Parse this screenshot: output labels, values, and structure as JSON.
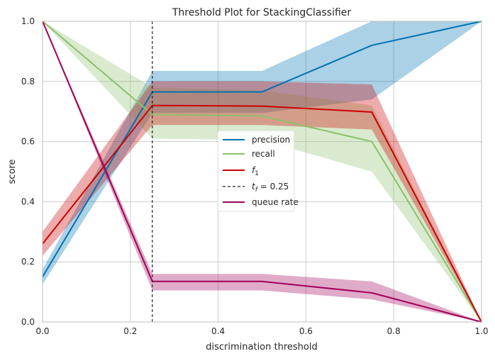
{
  "chart_data": {
    "type": "line",
    "title": "Threshold Plot for StackingClassifier",
    "xlabel": "discrimination threshold",
    "ylabel": "score",
    "xlim": [
      0,
      1
    ],
    "ylim": [
      0,
      1
    ],
    "xticks": [
      "0.0",
      "0.2",
      "0.4",
      "0.6",
      "0.8",
      "1.0"
    ],
    "yticks": [
      "0.0",
      "0.2",
      "0.4",
      "0.6",
      "0.8",
      "1.0"
    ],
    "grid": true,
    "legend_position": "center",
    "x": [
      0.0,
      0.25,
      0.5,
      0.75,
      1.0
    ],
    "series": [
      {
        "name": "precision",
        "color": "#0072b2",
        "values": [
          0.15,
          0.765,
          0.765,
          0.92,
          1.0
        ],
        "lower": [
          0.125,
          0.695,
          0.695,
          0.74,
          1.0
        ],
        "upper": [
          0.175,
          0.835,
          0.835,
          1.0,
          1.0
        ]
      },
      {
        "name": "recall",
        "color": "#8cc06b",
        "values": [
          1.0,
          0.69,
          0.685,
          0.6,
          0.0
        ],
        "lower": [
          1.0,
          0.61,
          0.605,
          0.5,
          0.0
        ],
        "upper": [
          1.0,
          0.78,
          0.77,
          0.72,
          0.0
        ]
      },
      {
        "name_main": "f",
        "name_sub": "1",
        "color": "#cc0000",
        "values": [
          0.26,
          0.72,
          0.718,
          0.698,
          0.0
        ],
        "lower": [
          0.22,
          0.655,
          0.655,
          0.64,
          0.0
        ],
        "upper": [
          0.3,
          0.8,
          0.8,
          0.79,
          0.0
        ]
      },
      {
        "name": "queue rate",
        "color": "#a0005a",
        "values": [
          1.0,
          0.135,
          0.135,
          0.097,
          0.0
        ],
        "lower": [
          1.0,
          0.105,
          0.105,
          0.075,
          0.0
        ],
        "upper": [
          1.0,
          0.16,
          0.16,
          0.135,
          0.0
        ]
      }
    ],
    "threshold": {
      "value": 0.25,
      "label_t": "t",
      "label_sub": "f",
      "label_rest": " = 0.25",
      "color": "#222222"
    }
  }
}
